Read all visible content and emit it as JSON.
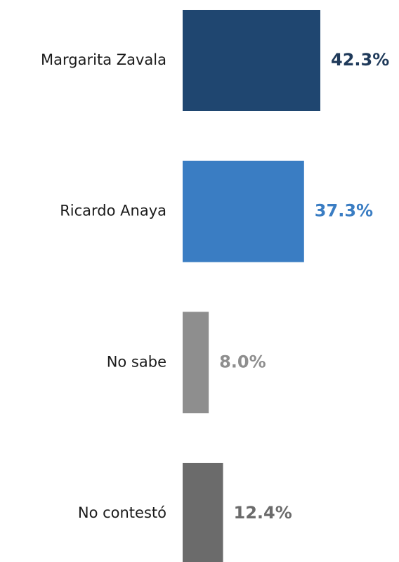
{
  "chart_data": {
    "type": "bar",
    "orientation": "horizontal",
    "categories": [
      "Margarita Zavala",
      "Ricardo Anaya",
      "No sabe",
      "No contestó"
    ],
    "values": [
      42.3,
      37.3,
      8.0,
      12.4
    ],
    "value_labels": [
      "42.3%",
      "37.3%",
      "8.0%",
      "12.4%"
    ],
    "colors": [
      "#1f4670",
      "#3a7dc3",
      "#8e8e8e",
      "#6b6b6b"
    ],
    "label_colors": [
      "#1f3a5a",
      "#3a7dc3",
      "#8e8e8e",
      "#6b6b6b"
    ],
    "title": "",
    "xlabel": "",
    "ylabel": "",
    "xlim": [
      0,
      42.3
    ],
    "grid": false,
    "legend": "none"
  }
}
